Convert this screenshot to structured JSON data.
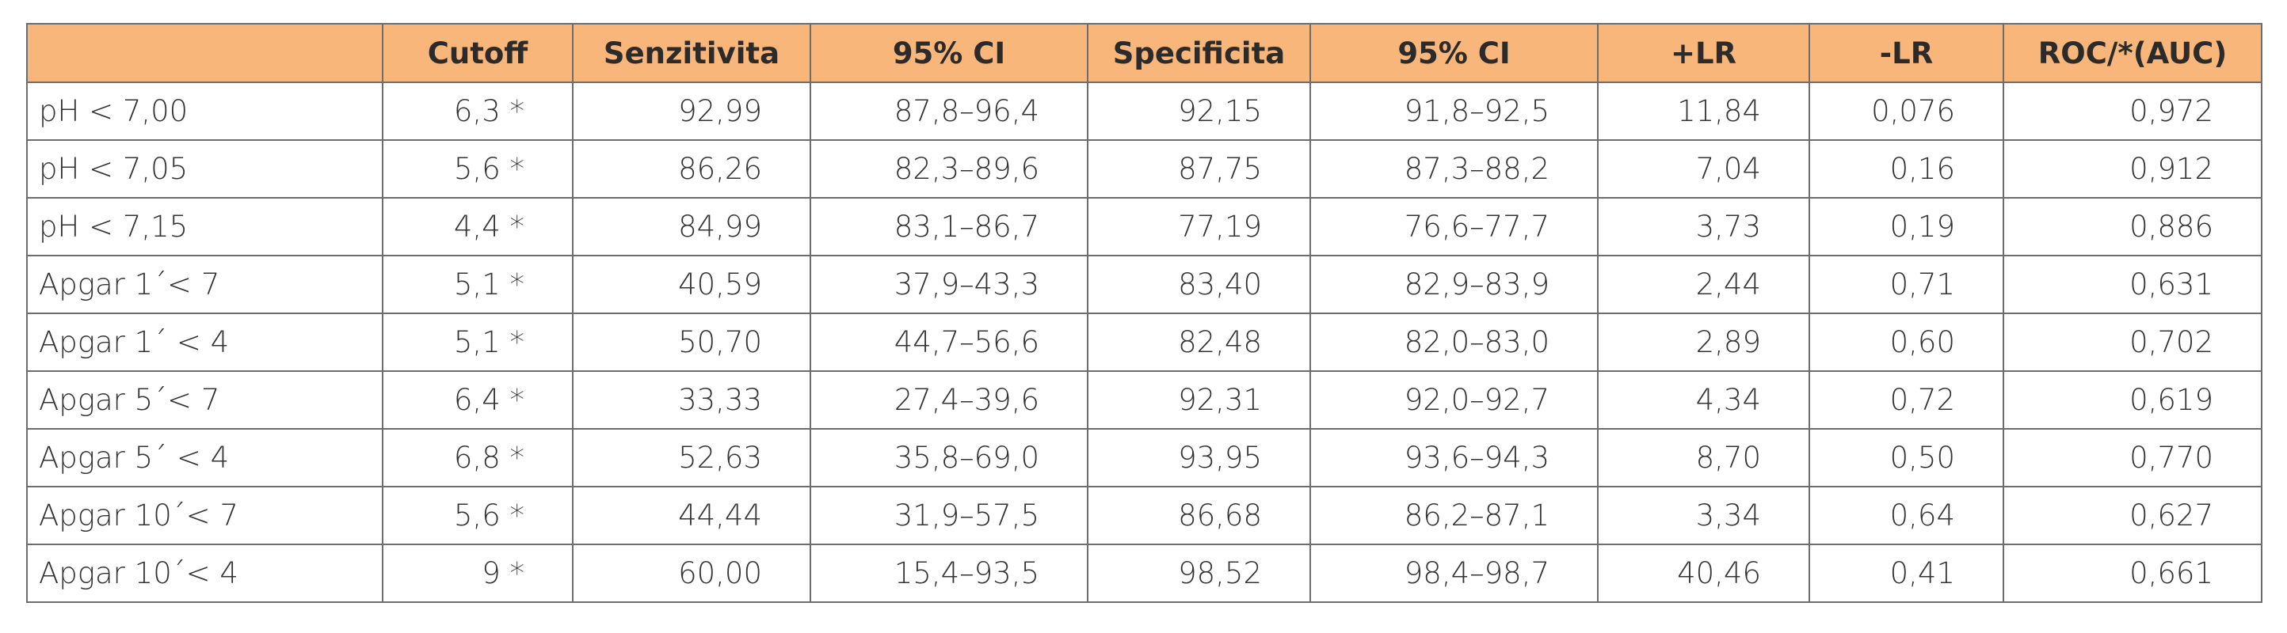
{
  "table": {
    "header": [
      "",
      "Cutoff",
      "Senzitivita",
      "95% CI",
      "Specificita",
      "95% CI",
      "+LR",
      "-LR",
      "ROC/*(AUC)"
    ],
    "rows": [
      [
        "pH < 7,00",
        "6,3 *",
        "92,99",
        "87,8–96,4",
        "92,15",
        "91,8–92,5",
        "11,84",
        "0,076",
        "0,972"
      ],
      [
        "pH < 7,05",
        "5,6 *",
        "86,26",
        "82,3–89,6",
        "87,75",
        "87,3–88,2",
        "7,04",
        "0,16",
        "0,912"
      ],
      [
        "pH < 7,15",
        "4,4 *",
        "84,99",
        "83,1–86,7",
        "77,19",
        "76,6–77,7",
        "3,73",
        "0,19",
        "0,886"
      ],
      [
        "Apgar 1´< 7",
        "5,1 *",
        "40,59",
        "37,9–43,3",
        "83,40",
        "82,9–83,9",
        "2,44",
        "0,71",
        "0,631"
      ],
      [
        "Apgar 1´ < 4",
        "5,1 *",
        "50,70",
        "44,7–56,6",
        "82,48",
        "82,0–83,0",
        "2,89",
        "0,60",
        "0,702"
      ],
      [
        "Apgar 5´< 7",
        "6,4 *",
        "33,33",
        "27,4–39,6",
        "92,31",
        "92,0–92,7",
        "4,34",
        "0,72",
        "0,619"
      ],
      [
        "Apgar 5´ < 4",
        "6,8 *",
        "52,63",
        "35,8–69,0",
        "93,95",
        "93,6–94,3",
        "8,70",
        "0,50",
        "0,770"
      ],
      [
        "Apgar 10´< 7",
        "5,6 *",
        "44,44",
        "31,9–57,5",
        "86,68",
        "86,2–87,1",
        "3,34",
        "0,64",
        "0,627"
      ],
      [
        "Apgar 10´< 4",
        "9 *",
        "60,00",
        "15,4–93,5",
        "98,52",
        "98,4–98,7",
        "40,46",
        "0,41",
        "0,661"
      ]
    ]
  }
}
